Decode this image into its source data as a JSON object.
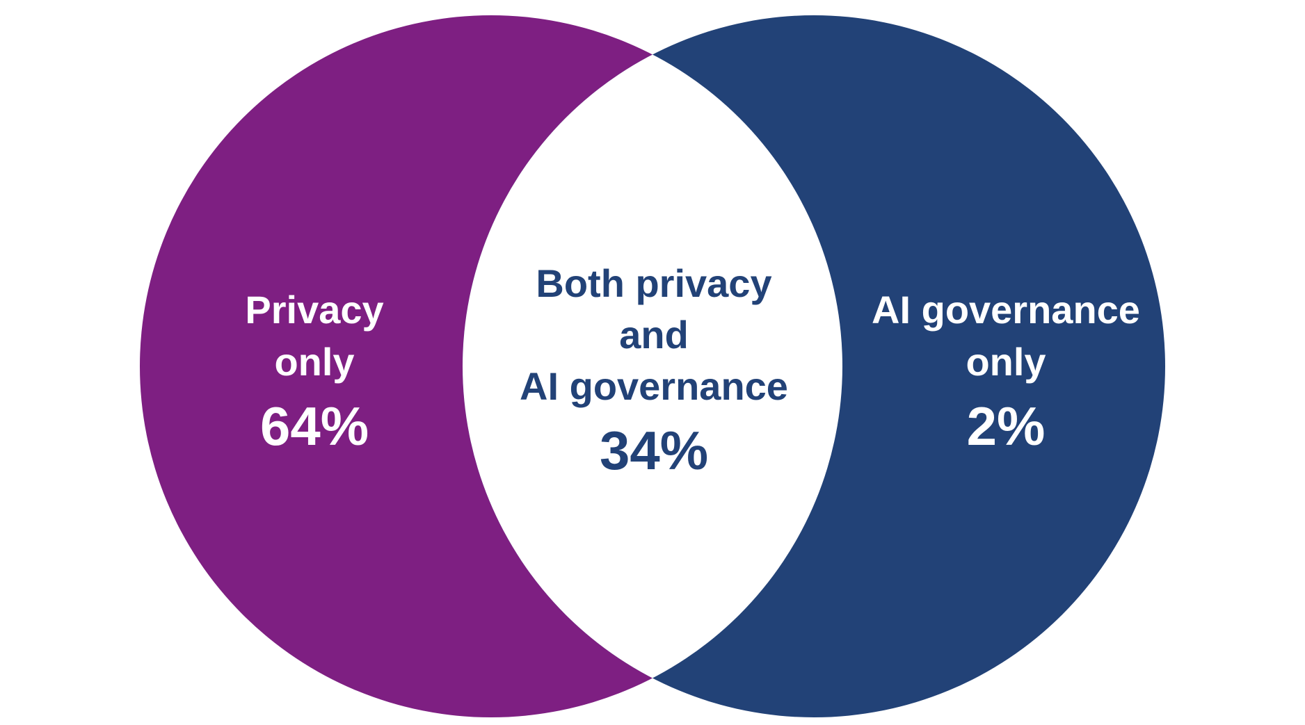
{
  "colors": {
    "privacy": "#7e1f82",
    "ai_governance": "#224277",
    "overlap": "#ffffff",
    "outer_text": "#ffffff",
    "overlap_text": "#224277"
  },
  "regions": {
    "privacy_only": {
      "lines": [
        "Privacy",
        "only"
      ],
      "value": "64%"
    },
    "both": {
      "lines": [
        "Both privacy",
        "and",
        "AI governance"
      ],
      "value": "34%"
    },
    "ai_governance_only": {
      "lines": [
        "AI governance",
        "only"
      ],
      "value": "2%"
    }
  }
}
